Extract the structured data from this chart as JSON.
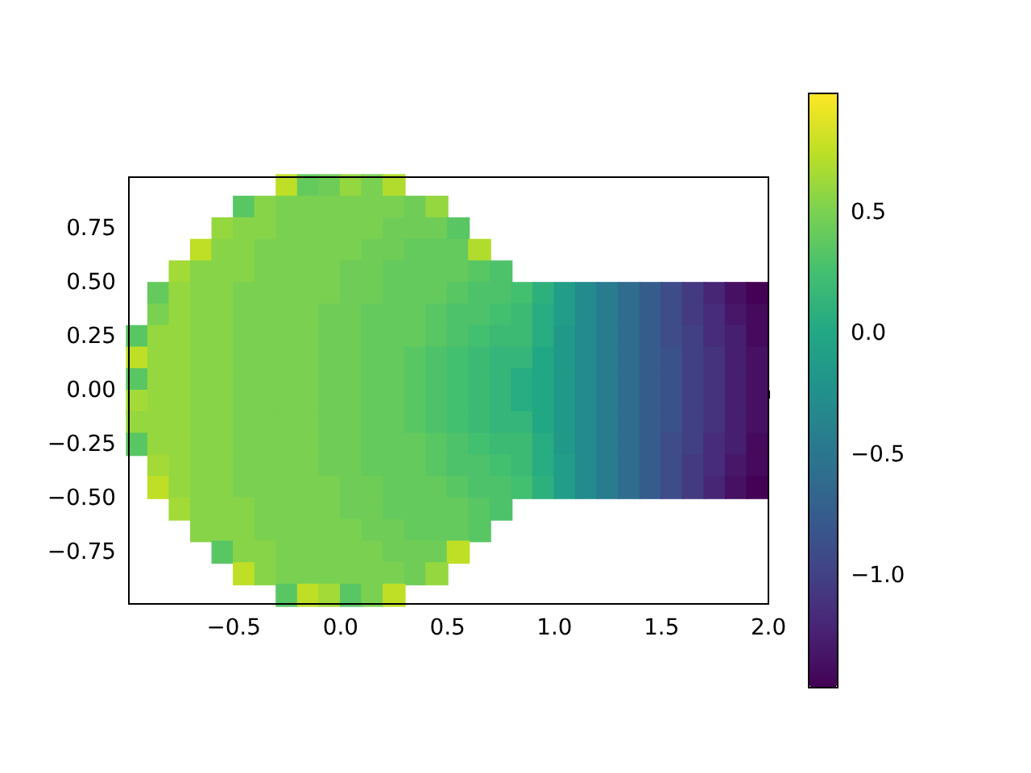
{
  "chart_data": {
    "type": "scatter",
    "marker": "square",
    "xlim": [
      -0.99,
      2.0
    ],
    "ylim": [
      -0.99,
      0.99
    ],
    "xticks": [
      {
        "value": -0.5,
        "label": "−0.5"
      },
      {
        "value": 0,
        "label": "0.0"
      },
      0.5,
      {
        "value": 1,
        "label": "1.0"
      },
      1.5,
      {
        "value": 2,
        "label": "2.0"
      }
    ],
    "yticks": [
      {
        "value": -0.75,
        "label": "−0.75"
      },
      {
        "value": -0.5,
        "label": "−0.50"
      },
      {
        "value": -0.25,
        "label": "−0.25"
      },
      {
        "value": 0,
        "label": "0.00"
      },
      0.25,
      {
        "value": 0.5,
        "label": "0.50"
      },
      0.75
    ],
    "clim": [
      -1.46,
      0.99
    ],
    "cticks": [
      {
        "value": -1,
        "label": "−1.0"
      },
      {
        "value": -0.5,
        "label": "−0.5"
      },
      {
        "value": 0,
        "label": "0.0"
      },
      0.5
    ],
    "x": [
      -0.25,
      -0.15,
      -0.05,
      0.05,
      0.15,
      0.25,
      -0.45,
      -0.35,
      -0.25,
      -0.15,
      -0.05,
      0.05,
      0.15,
      0.25,
      0.35,
      0.45,
      -0.55,
      -0.45,
      -0.35,
      -0.25,
      -0.15,
      -0.05,
      0.05,
      0.15,
      0.25,
      0.35,
      0.45,
      0.55,
      -0.65,
      -0.55,
      -0.45,
      -0.35,
      -0.25,
      -0.15,
      -0.05,
      0.05,
      0.15,
      0.25,
      0.35,
      0.45,
      0.55,
      0.65,
      -0.75,
      -0.65,
      -0.55,
      -0.45,
      -0.35,
      -0.25,
      -0.15,
      -0.05,
      0.05,
      0.15,
      0.25,
      0.35,
      0.45,
      0.55,
      0.65,
      0.75,
      -0.85,
      -0.75,
      -0.65,
      -0.55,
      -0.45,
      -0.35,
      -0.25,
      -0.15,
      -0.05,
      0.05,
      0.15,
      0.25,
      0.35,
      0.45,
      0.55,
      0.65,
      0.75,
      0.85,
      0.95,
      1.05,
      1.15,
      1.25,
      1.35,
      1.45,
      1.55,
      1.65,
      1.75,
      1.85,
      1.95,
      -0.85,
      -0.75,
      -0.65,
      -0.55,
      -0.45,
      -0.35,
      -0.25,
      -0.15,
      -0.05,
      0.05,
      0.15,
      0.25,
      0.35,
      0.45,
      0.55,
      0.65,
      0.75,
      0.85,
      0.95,
      1.05,
      1.15,
      1.25,
      1.35,
      1.45,
      1.55,
      1.65,
      1.75,
      1.85,
      1.95,
      -0.95,
      -0.85,
      -0.75,
      -0.65,
      -0.55,
      -0.45,
      -0.35,
      -0.25,
      -0.15,
      -0.05,
      0.05,
      0.15,
      0.25,
      0.35,
      0.45,
      0.55,
      0.65,
      0.75,
      0.85,
      0.95,
      1.05,
      1.15,
      1.25,
      1.35,
      1.45,
      1.55,
      1.65,
      1.75,
      1.85,
      1.95,
      -0.95,
      -0.85,
      -0.75,
      -0.65,
      -0.55,
      -0.45,
      -0.35,
      -0.25,
      -0.15,
      -0.05,
      0.05,
      0.15,
      0.25,
      0.35,
      0.45,
      0.55,
      0.65,
      0.75,
      0.85,
      0.95,
      1.05,
      1.15,
      1.25,
      1.35,
      1.45,
      1.55,
      1.65,
      1.75,
      1.85,
      1.95,
      -0.95,
      -0.85,
      -0.75,
      -0.65,
      -0.55,
      -0.45,
      -0.35,
      -0.25,
      -0.15,
      -0.05,
      0.05,
      0.15,
      0.25,
      0.35,
      0.45,
      0.55,
      0.65,
      0.75,
      0.85,
      0.95,
      1.05,
      1.15,
      1.25,
      1.35,
      1.45,
      1.55,
      1.65,
      1.75,
      1.85,
      1.95,
      -0.95,
      -0.85,
      -0.75,
      -0.65,
      -0.55,
      -0.45,
      -0.35,
      -0.25,
      -0.15,
      -0.05,
      0.05,
      0.15,
      0.25,
      0.35,
      0.45,
      0.55,
      0.65,
      0.75,
      0.85,
      0.95,
      1.05,
      1.15,
      1.25,
      1.35,
      1.45,
      1.55,
      1.65,
      1.75,
      1.85,
      1.95,
      -0.95,
      -0.85,
      -0.75,
      -0.65,
      -0.55,
      -0.45,
      -0.35,
      -0.25,
      -0.15,
      -0.05,
      0.05,
      0.15,
      0.25,
      0.35,
      0.45,
      0.55,
      0.65,
      0.75,
      0.85,
      0.95,
      1.05,
      1.15,
      1.25,
      1.35,
      1.45,
      1.55,
      1.65,
      1.75,
      1.85,
      1.95,
      -0.95,
      -0.85,
      -0.75,
      -0.65,
      -0.55,
      -0.45,
      -0.35,
      -0.25,
      -0.15,
      -0.05,
      0.05,
      0.15,
      0.25,
      0.35,
      0.45,
      0.55,
      0.65,
      0.75,
      0.85,
      0.95,
      1.05,
      1.15,
      1.25,
      1.35,
      1.45,
      1.55,
      1.65,
      1.75,
      1.85,
      1.95,
      -0.85,
      -0.75,
      -0.65,
      -0.55,
      -0.45,
      -0.35,
      -0.25,
      -0.15,
      -0.05,
      0.05,
      0.15,
      0.25,
      0.35,
      0.45,
      0.55,
      0.65,
      0.75,
      0.85,
      0.95,
      1.05,
      1.15,
      1.25,
      1.35,
      1.45,
      1.55,
      1.65,
      1.75,
      1.85,
      1.95,
      -0.85,
      -0.75,
      -0.65,
      -0.55,
      -0.45,
      -0.35,
      -0.25,
      -0.15,
      -0.05,
      0.05,
      0.15,
      0.25,
      0.35,
      0.45,
      0.55,
      0.65,
      0.75,
      0.85,
      0.95,
      1.05,
      1.15,
      1.25,
      1.35,
      1.45,
      1.55,
      1.65,
      1.75,
      1.85,
      1.95,
      -0.75,
      -0.65,
      -0.55,
      -0.45,
      -0.35,
      -0.25,
      -0.15,
      -0.05,
      0.05,
      0.15,
      0.25,
      0.35,
      0.45,
      0.55,
      0.65,
      0.75,
      -0.65,
      -0.55,
      -0.45,
      -0.35,
      -0.25,
      -0.15,
      -0.05,
      0.05,
      0.15,
      0.25,
      0.35,
      0.45,
      0.55,
      0.65,
      -0.55,
      -0.45,
      -0.35,
      -0.25,
      -0.15,
      -0.05,
      0.05,
      0.15,
      0.25,
      0.35,
      0.45,
      0.55,
      -0.45,
      -0.35,
      -0.25,
      -0.15,
      -0.05,
      0.05,
      0.15,
      0.25,
      0.35,
      0.45,
      -0.25,
      -0.15,
      -0.05,
      0.05,
      0.15,
      0.25
    ],
    "values": [
      0.95,
      0.95,
      0.95,
      0.95,
      0.95,
      0.95,
      0.85,
      0.85,
      0.85,
      0.85,
      0.85,
      0.85,
      0.85,
      0.85,
      0.85,
      0.85,
      0.75,
      0.75,
      0.75,
      0.75,
      0.75,
      0.75,
      0.75,
      0.75,
      0.75,
      0.75,
      0.75,
      0.75,
      0.65,
      0.65,
      0.65,
      0.65,
      0.65,
      0.65,
      0.65,
      0.65,
      0.65,
      0.65,
      0.65,
      0.65,
      0.65,
      0.65,
      0.55,
      0.55,
      0.55,
      0.55,
      0.55,
      0.55,
      0.55,
      0.55,
      0.55,
      0.55,
      0.55,
      0.55,
      0.55,
      0.55,
      0.55,
      0.55,
      0.45,
      0.45,
      0.45,
      0.45,
      0.45,
      0.45,
      0.45,
      0.45,
      0.45,
      0.45,
      0.45,
      0.45,
      0.45,
      0.45,
      0.45,
      0.45,
      0.45,
      0.45,
      0.45,
      0.45,
      0.45,
      0.45,
      0.45,
      0.45,
      0.45,
      0.45,
      0.45,
      0.45,
      0.45,
      0.35,
      0.35,
      0.35,
      0.35,
      0.35,
      0.35,
      0.35,
      0.35,
      0.35,
      0.35,
      0.35,
      0.35,
      0.35,
      0.35,
      0.35,
      0.35,
      0.35,
      0.35,
      0.35,
      0.35,
      0.35,
      0.35,
      0.35,
      0.35,
      0.35,
      0.35,
      0.35,
      0.35,
      0.35,
      0.25,
      0.25,
      0.25,
      0.25,
      0.25,
      0.25,
      0.25,
      0.25,
      0.25,
      0.25,
      0.25,
      0.25,
      0.25,
      0.25,
      0.25,
      0.25,
      0.25,
      0.25,
      0.25,
      0.25,
      0.25,
      0.25,
      0.25,
      0.25,
      0.25,
      0.25,
      0.25,
      0.25,
      0.25,
      0.25,
      0.15,
      0.15,
      0.15,
      0.15,
      0.15,
      0.15,
      0.15,
      0.15,
      0.15,
      0.15,
      0.15,
      0.15,
      0.15,
      0.15,
      0.15,
      0.15,
      0.15,
      0.15,
      0.15,
      0.15,
      0.15,
      0.15,
      0.15,
      0.15,
      0.15,
      0.15,
      0.15,
      0.15,
      0.15,
      0.15,
      0.05,
      0.05,
      0.05,
      0.05,
      0.05,
      0.05,
      0.05,
      0.05,
      0.05,
      0.05,
      0.05,
      0.05,
      0.05,
      0.05,
      0.05,
      0.05,
      0.05,
      0.05,
      0.05,
      0.05,
      0.05,
      0.05,
      0.05,
      0.05,
      0.05,
      0.05,
      0.05,
      0.05,
      0.05,
      0.05,
      -0.05,
      -0.05,
      -0.05,
      -0.05,
      -0.05,
      -0.05,
      -0.05,
      -0.05,
      -0.05,
      -0.05,
      -0.05,
      -0.05,
      -0.05,
      -0.05,
      -0.05,
      -0.05,
      -0.05,
      -0.05,
      -0.05,
      -0.05,
      -0.05,
      -0.05,
      -0.05,
      -0.05,
      -0.05,
      -0.05,
      -0.05,
      -0.05,
      -0.05,
      -0.05,
      -0.15,
      -0.15,
      -0.15,
      -0.15,
      -0.15,
      -0.15,
      -0.15,
      -0.15,
      -0.15,
      -0.15,
      -0.15,
      -0.15,
      -0.15,
      -0.15,
      -0.15,
      -0.15,
      -0.15,
      -0.15,
      -0.15,
      -0.15,
      -0.15,
      -0.15,
      -0.15,
      -0.15,
      -0.15,
      -0.15,
      -0.15,
      -0.15,
      -0.15,
      -0.15,
      -0.25,
      -0.25,
      -0.25,
      -0.25,
      -0.25,
      -0.25,
      -0.25,
      -0.25,
      -0.25,
      -0.25,
      -0.25,
      -0.25,
      -0.25,
      -0.25,
      -0.25,
      -0.25,
      -0.25,
      -0.25,
      -0.25,
      -0.25,
      -0.25,
      -0.25,
      -0.25,
      -0.25,
      -0.25,
      -0.25,
      -0.25,
      -0.25,
      -0.25,
      -0.25,
      -0.35,
      -0.35,
      -0.35,
      -0.35,
      -0.35,
      -0.35,
      -0.35,
      -0.35,
      -0.35,
      -0.35,
      -0.35,
      -0.35,
      -0.35,
      -0.35,
      -0.35,
      -0.35,
      -0.35,
      -0.35,
      -0.35,
      -0.35,
      -0.35,
      -0.35,
      -0.35,
      -0.35,
      -0.35,
      -0.35,
      -0.35,
      -0.35,
      -0.35,
      -0.45,
      -0.45,
      -0.45,
      -0.45,
      -0.45,
      -0.45,
      -0.45,
      -0.45,
      -0.45,
      -0.45,
      -0.45,
      -0.45,
      -0.45,
      -0.45,
      -0.45,
      -0.45,
      -0.45,
      -0.45,
      -0.45,
      -0.45,
      -0.45,
      -0.45,
      -0.45,
      -0.45,
      -0.45,
      -0.45,
      -0.45,
      -0.45,
      -0.45,
      -0.55,
      -0.55,
      -0.55,
      -0.55,
      -0.55,
      -0.55,
      -0.55,
      -0.55,
      -0.55,
      -0.55,
      -0.55,
      -0.55,
      -0.55,
      -0.55,
      -0.55,
      -0.55,
      -0.65,
      -0.65,
      -0.65,
      -0.65,
      -0.65,
      -0.65,
      -0.65,
      -0.65,
      -0.65,
      -0.65,
      -0.65,
      -0.65,
      -0.65,
      -0.65,
      -0.75,
      -0.75,
      -0.75,
      -0.75,
      -0.75,
      -0.75,
      -0.75,
      -0.75,
      -0.75,
      -0.75,
      -0.75,
      -0.75,
      -0.85,
      -0.85,
      -0.85,
      -0.85,
      -0.85,
      -0.85,
      -0.85,
      -0.85,
      -0.85,
      -0.85,
      -0.95,
      -0.95,
      -0.95,
      -0.95,
      -0.95,
      -0.95
    ],
    "cvalues": [
      0.75,
      0.4,
      0.45,
      0.6,
      0.5,
      0.7,
      0.35,
      0.55,
      0.5,
      0.5,
      0.5,
      0.5,
      0.5,
      0.5,
      0.45,
      0.6,
      0.6,
      0.55,
      0.55,
      0.5,
      0.5,
      0.5,
      0.5,
      0.5,
      0.45,
      0.45,
      0.45,
      0.35,
      0.75,
      0.55,
      0.55,
      0.5,
      0.5,
      0.5,
      0.5,
      0.5,
      0.45,
      0.45,
      0.4,
      0.4,
      0.4,
      0.7,
      0.65,
      0.55,
      0.55,
      0.55,
      0.5,
      0.5,
      0.5,
      0.5,
      0.45,
      0.45,
      0.4,
      0.4,
      0.4,
      0.4,
      0.35,
      0.3,
      0.4,
      0.6,
      0.55,
      0.55,
      0.5,
      0.5,
      0.5,
      0.5,
      0.5,
      0.45,
      0.45,
      0.4,
      0.4,
      0.4,
      0.35,
      0.3,
      0.3,
      0.25,
      0.1,
      -0.1,
      -0.3,
      -0.45,
      -0.6,
      -0.75,
      -0.9,
      -1.05,
      -1.2,
      -1.35,
      -1.45,
      0.5,
      0.6,
      0.55,
      0.55,
      0.5,
      0.5,
      0.5,
      0.5,
      0.45,
      0.45,
      0.4,
      0.4,
      0.4,
      0.35,
      0.3,
      0.3,
      0.25,
      0.2,
      0.05,
      -0.1,
      -0.3,
      -0.45,
      -0.6,
      -0.75,
      -0.9,
      -1.05,
      -1.15,
      -1.3,
      -1.4,
      0.35,
      0.6,
      0.6,
      0.55,
      0.55,
      0.5,
      0.5,
      0.5,
      0.5,
      0.45,
      0.45,
      0.4,
      0.4,
      0.4,
      0.35,
      0.3,
      0.25,
      0.2,
      0.2,
      0.05,
      -0.15,
      -0.3,
      -0.45,
      -0.6,
      -0.75,
      -0.9,
      -1.0,
      -1.15,
      -1.25,
      -1.4,
      0.75,
      0.6,
      0.6,
      0.55,
      0.55,
      0.5,
      0.5,
      0.5,
      0.5,
      0.45,
      0.45,
      0.4,
      0.4,
      0.35,
      0.3,
      0.25,
      0.2,
      0.15,
      0.15,
      0,
      -0.15,
      -0.3,
      -0.45,
      -0.6,
      -0.75,
      -0.85,
      -1.0,
      -1.1,
      -1.25,
      -1.35,
      0.35,
      0.6,
      0.6,
      0.55,
      0.55,
      0.5,
      0.5,
      0.5,
      0.5,
      0.45,
      0.45,
      0.4,
      0.4,
      0.35,
      0.3,
      0.25,
      0.2,
      0.15,
      0.05,
      0,
      -0.15,
      -0.3,
      -0.45,
      -0.6,
      -0.75,
      -0.85,
      -1.0,
      -1.1,
      -1.25,
      -1.35,
      0.65,
      0.6,
      0.6,
      0.55,
      0.55,
      0.5,
      0.5,
      0.5,
      0.5,
      0.45,
      0.45,
      0.4,
      0.4,
      0.35,
      0.3,
      0.25,
      0.2,
      0.15,
      0.05,
      0,
      -0.15,
      -0.3,
      -0.45,
      -0.6,
      -0.75,
      -0.85,
      -1.0,
      -1.1,
      -1.25,
      -1.35,
      0.6,
      0.6,
      0.6,
      0.55,
      0.55,
      0.5,
      0.5,
      0.5,
      0.5,
      0.45,
      0.45,
      0.4,
      0.4,
      0.35,
      0.3,
      0.25,
      0.2,
      0.15,
      0.15,
      0,
      -0.15,
      -0.3,
      -0.45,
      -0.6,
      -0.75,
      -0.85,
      -1.0,
      -1.1,
      -1.25,
      -1.35,
      0.35,
      0.6,
      0.6,
      0.55,
      0.55,
      0.5,
      0.5,
      0.5,
      0.5,
      0.45,
      0.45,
      0.4,
      0.4,
      0.4,
      0.35,
      0.3,
      0.25,
      0.2,
      0.2,
      0.05,
      -0.15,
      -0.3,
      -0.45,
      -0.6,
      -0.75,
      -0.9,
      -1.0,
      -1.15,
      -1.25,
      -1.4,
      0.65,
      0.6,
      0.55,
      0.55,
      0.5,
      0.5,
      0.5,
      0.5,
      0.45,
      0.45,
      0.4,
      0.4,
      0.4,
      0.35,
      0.3,
      0.3,
      0.25,
      0.2,
      0.05,
      -0.1,
      -0.3,
      -0.45,
      -0.6,
      -0.75,
      -0.9,
      -1.05,
      -1.15,
      -1.3,
      -1.4,
      0.75,
      0.6,
      0.55,
      0.55,
      0.5,
      0.5,
      0.5,
      0.5,
      0.5,
      0.45,
      0.45,
      0.4,
      0.4,
      0.4,
      0.35,
      0.3,
      0.3,
      0.25,
      0.1,
      -0.1,
      -0.3,
      -0.45,
      -0.6,
      -0.75,
      -0.9,
      -1.05,
      -1.2,
      -1.35,
      -1.45,
      0.65,
      0.55,
      0.55,
      0.55,
      0.5,
      0.5,
      0.5,
      0.5,
      0.45,
      0.45,
      0.4,
      0.4,
      0.4,
      0.4,
      0.35,
      0.3,
      0.55,
      0.55,
      0.55,
      0.5,
      0.5,
      0.5,
      0.5,
      0.5,
      0.45,
      0.45,
      0.4,
      0.4,
      0.4,
      0.35,
      0.35,
      0.55,
      0.55,
      0.5,
      0.5,
      0.5,
      0.5,
      0.5,
      0.45,
      0.45,
      0.45,
      0.75,
      0.75,
      0.55,
      0.5,
      0.5,
      0.5,
      0.5,
      0.5,
      0.5,
      0.45,
      0.6,
      0.35,
      0.75,
      0.65,
      0.35,
      0.5,
      0.75
    ]
  }
}
